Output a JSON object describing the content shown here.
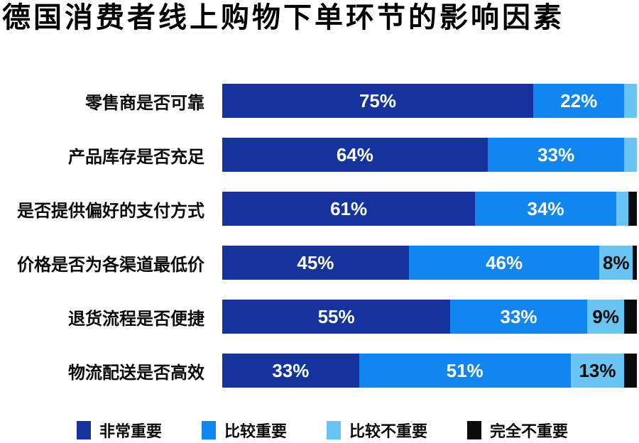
{
  "title": "德国消费者线上购物下单环节的影响因素",
  "colors": {
    "very_important": "#15339D",
    "fairly_important": "#1186F0",
    "less_important": "#68C4F2",
    "not_important": "#0A0A0A"
  },
  "legend": {
    "items": [
      {
        "label": "非常重要"
      },
      {
        "label": "比较重要"
      },
      {
        "label": "比较不重要"
      },
      {
        "label": "完全不重要"
      }
    ]
  },
  "chart_data": {
    "type": "bar",
    "orientation": "horizontal-stacked",
    "unit": "%",
    "xlim": [
      0,
      100
    ],
    "grid": false,
    "legend_position": "bottom",
    "title": "德国消费者线上购物下单环节的影响因素",
    "categories": [
      "零售商是否可靠",
      "产品库存是否充足",
      "是否提供偏好的支付方式",
      "价格是否为各渠道最低价",
      "退货流程是否便捷",
      "物流配送是否高效"
    ],
    "series": [
      {
        "name": "非常重要",
        "color": "#15339D",
        "values": [
          75,
          64,
          61,
          45,
          55,
          33
        ]
      },
      {
        "name": "比较重要",
        "color": "#1186F0",
        "values": [
          22,
          33,
          34,
          46,
          33,
          51
        ]
      },
      {
        "name": "比较不重要",
        "color": "#68C4F2",
        "values": [
          3,
          3,
          3,
          8,
          9,
          13
        ]
      },
      {
        "name": "完全不重要",
        "color": "#0A0A0A",
        "values": [
          0,
          0,
          2,
          1,
          3,
          3
        ]
      }
    ],
    "rows": [
      {
        "label": "零售商是否可靠",
        "segments": [
          {
            "value": 75,
            "text": "75%"
          },
          {
            "value": 22,
            "text": "22%"
          },
          {
            "value": 3,
            "text": ""
          },
          {
            "value": 0,
            "text": ""
          }
        ]
      },
      {
        "label": "产品库存是否充足",
        "segments": [
          {
            "value": 64,
            "text": "64%"
          },
          {
            "value": 33,
            "text": "33%"
          },
          {
            "value": 3,
            "text": ""
          },
          {
            "value": 0,
            "text": ""
          }
        ]
      },
      {
        "label": "是否提供偏好的支付方式",
        "segments": [
          {
            "value": 61,
            "text": "61%"
          },
          {
            "value": 34,
            "text": "34%"
          },
          {
            "value": 3,
            "text": ""
          },
          {
            "value": 2,
            "text": ""
          }
        ]
      },
      {
        "label": "价格是否为各渠道最低价",
        "segments": [
          {
            "value": 45,
            "text": "45%"
          },
          {
            "value": 46,
            "text": "46%"
          },
          {
            "value": 8,
            "text": "8%"
          },
          {
            "value": 1,
            "text": ""
          }
        ]
      },
      {
        "label": "退货流程是否便捷",
        "segments": [
          {
            "value": 55,
            "text": "55%"
          },
          {
            "value": 33,
            "text": "33%"
          },
          {
            "value": 9,
            "text": "9%"
          },
          {
            "value": 3,
            "text": ""
          }
        ]
      },
      {
        "label": "物流配送是否高效",
        "segments": [
          {
            "value": 33,
            "text": "33%"
          },
          {
            "value": 51,
            "text": "51%"
          },
          {
            "value": 13,
            "text": "13%"
          },
          {
            "value": 3,
            "text": ""
          }
        ]
      }
    ]
  }
}
